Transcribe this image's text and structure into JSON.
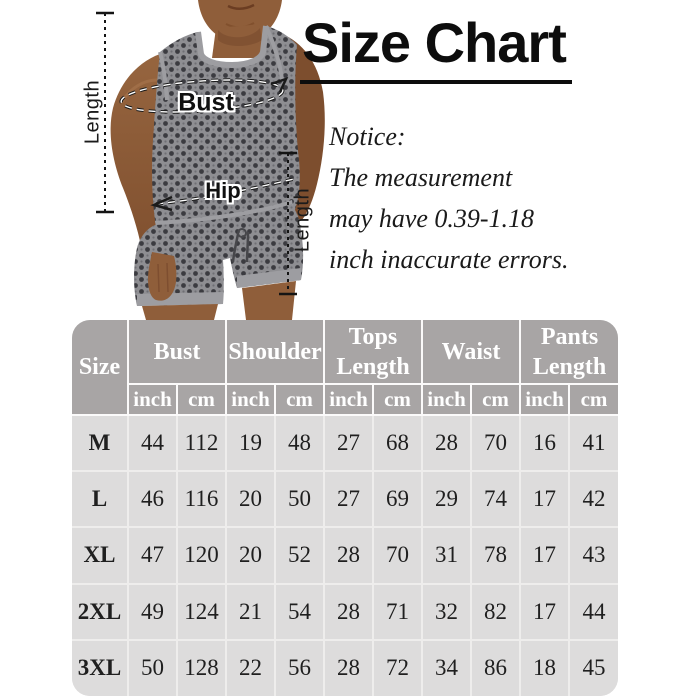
{
  "page": {
    "title": "Size Chart",
    "notice": {
      "heading": "Notice:",
      "lines": [
        "The measurement",
        "may have 0.39-1.18",
        "inch inaccurate errors."
      ]
    }
  },
  "model_figure": {
    "labels": {
      "top_length": "Length",
      "bust": "Bust",
      "hip": "Hip",
      "pants_length": "Length"
    }
  },
  "table": {
    "header_groups": [
      {
        "label": "Size",
        "span_rows": true
      },
      {
        "label": "Bust"
      },
      {
        "label": "Shoulder"
      },
      {
        "label": "Tops Length"
      },
      {
        "label": "Waist"
      },
      {
        "label": "Pants Length"
      }
    ],
    "unit_labels": [
      "inch",
      "cm"
    ],
    "rows": [
      {
        "size": "M",
        "values": [
          "44",
          "112",
          "19",
          "48",
          "27",
          "68",
          "28",
          "70",
          "16",
          "41"
        ]
      },
      {
        "size": "L",
        "values": [
          "46",
          "116",
          "20",
          "50",
          "27",
          "69",
          "29",
          "74",
          "17",
          "42"
        ]
      },
      {
        "size": "XL",
        "values": [
          "47",
          "120",
          "20",
          "52",
          "28",
          "70",
          "31",
          "78",
          "17",
          "43"
        ]
      },
      {
        "size": "2XL",
        "values": [
          "49",
          "124",
          "21",
          "54",
          "28",
          "71",
          "32",
          "82",
          "17",
          "44"
        ]
      },
      {
        "size": "3XL",
        "values": [
          "50",
          "128",
          "22",
          "56",
          "28",
          "72",
          "34",
          "86",
          "18",
          "45"
        ]
      }
    ]
  },
  "colors": {
    "header_bg": "#a8a5a5",
    "row_bg": "#dddcdc",
    "header_grid": "#fbfafa",
    "body_grid": "#eeedec",
    "header_text": "#ffffff",
    "body_text": "#1f1f1f",
    "title_text": "#0d0d0d",
    "garment_gray": "#8e8e92",
    "skin_tone": "#8f5e3a"
  },
  "chart_data": {
    "type": "table",
    "title": "Size Chart",
    "notice": "Notice: The measurement may have 0.39-1.18 inch inaccurate errors.",
    "columns": [
      "Size",
      "Bust inch",
      "Bust cm",
      "Shoulder inch",
      "Shoulder cm",
      "Tops Length inch",
      "Tops Length cm",
      "Waist inch",
      "Waist cm",
      "Pants Length inch",
      "Pants Length cm"
    ],
    "rows": [
      [
        "M",
        44,
        112,
        19,
        48,
        27,
        68,
        28,
        70,
        16,
        41
      ],
      [
        "L",
        46,
        116,
        20,
        50,
        27,
        69,
        29,
        74,
        17,
        42
      ],
      [
        "XL",
        47,
        120,
        20,
        52,
        28,
        70,
        31,
        78,
        17,
        43
      ],
      [
        "2XL",
        49,
        124,
        21,
        54,
        28,
        71,
        32,
        82,
        17,
        44
      ],
      [
        "3XL",
        50,
        128,
        22,
        56,
        28,
        72,
        34,
        86,
        18,
        45
      ]
    ]
  }
}
